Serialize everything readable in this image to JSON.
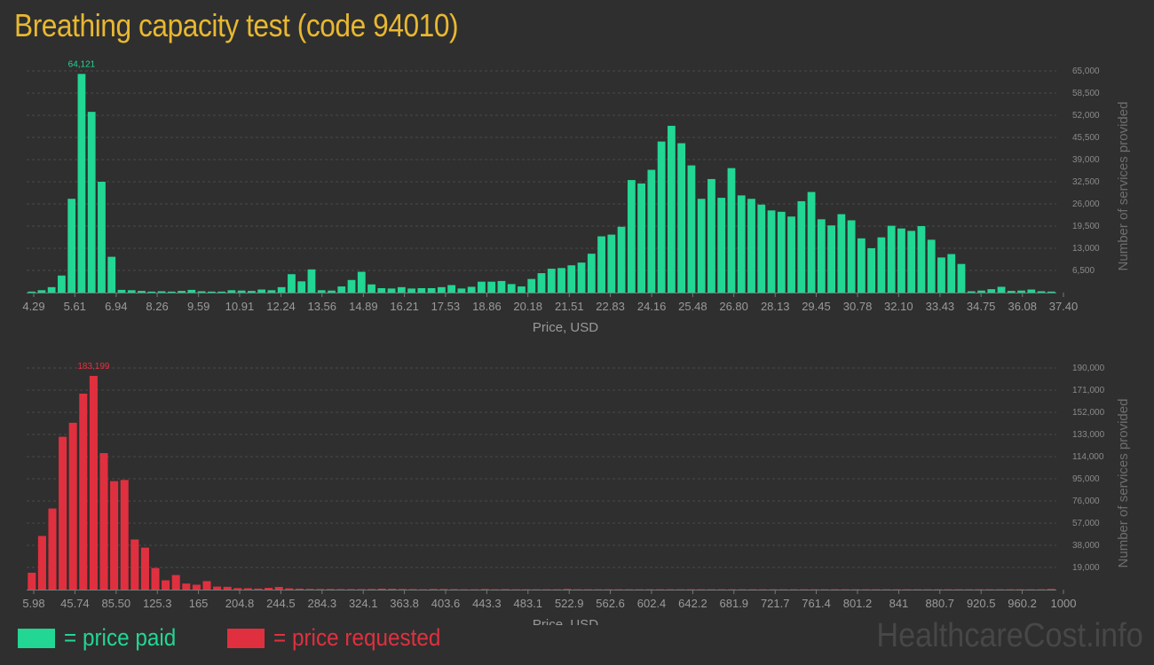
{
  "page": {
    "title": "Breathing capacity test (code 94010)",
    "watermark": "HealthcareCost.info"
  },
  "legend": {
    "items": [
      {
        "label": "= price paid",
        "color": "#22d693"
      },
      {
        "label": "= price requested",
        "color": "#e0303f"
      }
    ]
  },
  "chart_data": [
    {
      "type": "bar",
      "id": "paid",
      "color": "#22d693",
      "xlabel": "Price, USD",
      "ylabel": "Number of services provided",
      "ylim": [
        0,
        65000
      ],
      "yticks": [
        "6,500",
        "13,000",
        "19,500",
        "26,000",
        "32,500",
        "39,000",
        "45,500",
        "52,000",
        "58,500",
        "65,000"
      ],
      "ytick_values": [
        6500,
        13000,
        19500,
        26000,
        32500,
        39000,
        45500,
        52000,
        58500,
        65000
      ],
      "xticks": [
        "4.29",
        "5.61",
        "6.94",
        "8.26",
        "9.59",
        "10.91",
        "12.24",
        "13.56",
        "14.89",
        "16.21",
        "17.53",
        "18.86",
        "20.18",
        "21.51",
        "22.83",
        "24.16",
        "25.48",
        "26.80",
        "28.13",
        "29.45",
        "30.78",
        "32.10",
        "33.43",
        "34.75",
        "36.08",
        "37.40"
      ],
      "xrange": [
        4.29,
        37.4
      ],
      "peak_label": "64,121",
      "grid": true,
      "bin_width": 0.2207,
      "values": [
        300,
        700,
        1600,
        5000,
        27500,
        64121,
        53000,
        32500,
        10500,
        800,
        700,
        500,
        300,
        400,
        300,
        500,
        800,
        400,
        300,
        300,
        700,
        600,
        500,
        900,
        700,
        1600,
        5400,
        3300,
        6800,
        700,
        600,
        1800,
        3700,
        6100,
        2400,
        1300,
        1200,
        1600,
        1200,
        1300,
        1300,
        1600,
        2200,
        1200,
        1700,
        3200,
        3200,
        3400,
        2500,
        1800,
        4000,
        5700,
        7000,
        7200,
        8000,
        8800,
        11400,
        16500,
        17000,
        19300,
        33000,
        32000,
        36000,
        44300,
        48900,
        43800,
        37300,
        27500,
        33300,
        27800,
        36500,
        28500,
        27500,
        25800,
        24100,
        23700,
        22300,
        26800,
        29500,
        21500,
        19700,
        23000,
        21200,
        15900,
        13000,
        16200,
        19600,
        18800,
        18100,
        19500,
        15500,
        10300,
        11300,
        8400,
        400,
        600,
        1000,
        1700,
        500,
        600,
        900,
        400,
        300
      ]
    },
    {
      "type": "bar",
      "id": "requested",
      "color": "#e0303f",
      "xlabel": "Price, USD",
      "ylabel": "Number of services provided",
      "ylim": [
        0,
        190000
      ],
      "yticks": [
        "19,000",
        "38,000",
        "57,000",
        "76,000",
        "95,000",
        "114,000",
        "133,000",
        "152,000",
        "171,000",
        "190,000"
      ],
      "ytick_values": [
        19000,
        38000,
        57000,
        76000,
        95000,
        114000,
        133000,
        152000,
        171000,
        190000
      ],
      "xticks": [
        "5.98",
        "45.74",
        "85.50",
        "125.3",
        "165",
        "204.8",
        "244.5",
        "284.3",
        "324.1",
        "363.8",
        "403.6",
        "443.3",
        "483.1",
        "522.9",
        "562.6",
        "602.4",
        "642.2",
        "681.9",
        "721.7",
        "761.4",
        "801.2",
        "841",
        "880.7",
        "920.5",
        "960.2",
        "1000"
      ],
      "xrange": [
        5.98,
        1000
      ],
      "peak_label": "183,199",
      "grid": true,
      "bin_width": 9.94,
      "values": [
        14500,
        46000,
        69500,
        131000,
        143000,
        168000,
        183199,
        117000,
        93000,
        94000,
        43000,
        36000,
        18500,
        8000,
        12500,
        5200,
        4200,
        7300,
        2600,
        2400,
        1300,
        1200,
        900,
        1500,
        2300,
        1100,
        800,
        600,
        500,
        500,
        400,
        400,
        400,
        500,
        800,
        700,
        500,
        400,
        300,
        500,
        500,
        400,
        300,
        300,
        500,
        300,
        400,
        300,
        300,
        300,
        300,
        300,
        600,
        300,
        300,
        300,
        300,
        300,
        300,
        300,
        300,
        300,
        300,
        300,
        300,
        300,
        300,
        300,
        300,
        300,
        300,
        300,
        300,
        300,
        300,
        300,
        300,
        300,
        300,
        300,
        300,
        300,
        300,
        300,
        300,
        300,
        300,
        300,
        300,
        300,
        300,
        300,
        300,
        300,
        300,
        300,
        300,
        300,
        300,
        600
      ]
    }
  ]
}
